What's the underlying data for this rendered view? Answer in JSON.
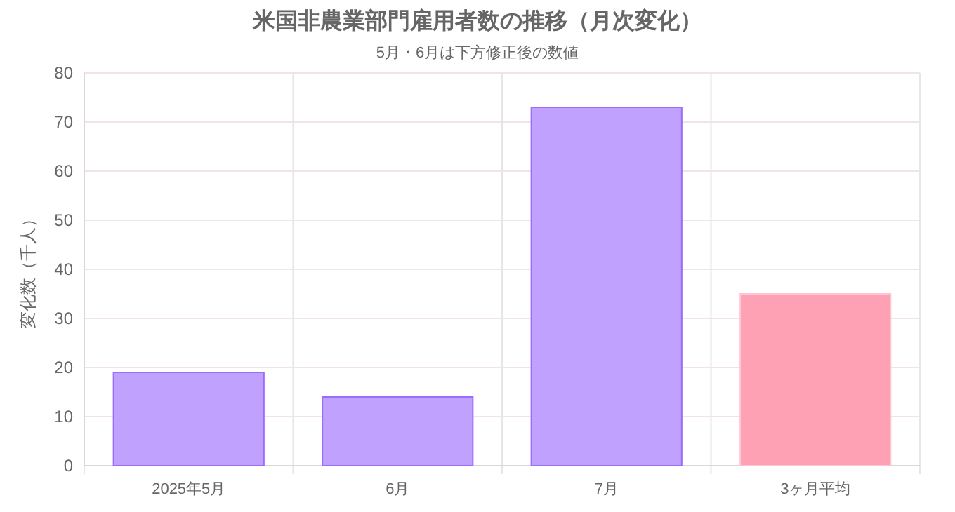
{
  "chart_data": {
    "type": "bar",
    "title": "米国非農業部門雇用者数の推移（月次変化）",
    "subtitle": "5月・6月は下方修正後の数値",
    "ylabel": "変化数（千人）",
    "categories": [
      "2025年5月",
      "6月",
      "7月",
      "3ヶ月平均"
    ],
    "values": [
      19,
      14,
      73,
      35
    ],
    "colors": [
      "#c0a1fe",
      "#c0a1fe",
      "#c0a1fe",
      "#fea1b4"
    ],
    "ylim": [
      0,
      80
    ],
    "yticks": [
      0,
      10,
      20,
      30,
      40,
      50,
      60,
      70,
      80
    ],
    "grid": true
  }
}
